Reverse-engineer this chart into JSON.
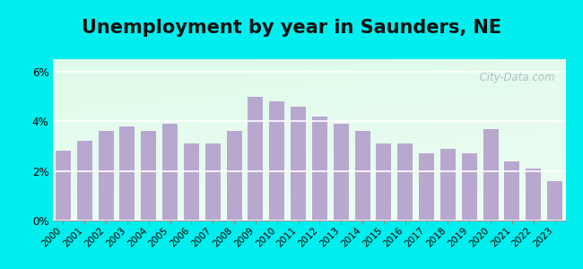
{
  "years": [
    2000,
    2001,
    2002,
    2003,
    2004,
    2005,
    2006,
    2007,
    2008,
    2009,
    2010,
    2011,
    2012,
    2013,
    2014,
    2015,
    2016,
    2017,
    2018,
    2019,
    2020,
    2021,
    2022,
    2023
  ],
  "values": [
    2.8,
    3.2,
    3.6,
    3.8,
    3.6,
    3.9,
    3.1,
    3.1,
    3.6,
    5.0,
    4.8,
    4.6,
    4.2,
    3.9,
    3.6,
    3.1,
    3.1,
    2.7,
    2.9,
    2.7,
    3.7,
    2.4,
    2.1,
    1.6
  ],
  "bar_color": "#b8a8d0",
  "title": "Unemployment by year in Saunders, NE",
  "title_fontsize": 15,
  "title_fontweight": "bold",
  "yticks": [
    0,
    2,
    4,
    6
  ],
  "ylim": [
    0,
    6.5
  ],
  "outer_bg": "#00eeee",
  "watermark": "  City-Data.com",
  "watermark_color": "#aab8c2"
}
